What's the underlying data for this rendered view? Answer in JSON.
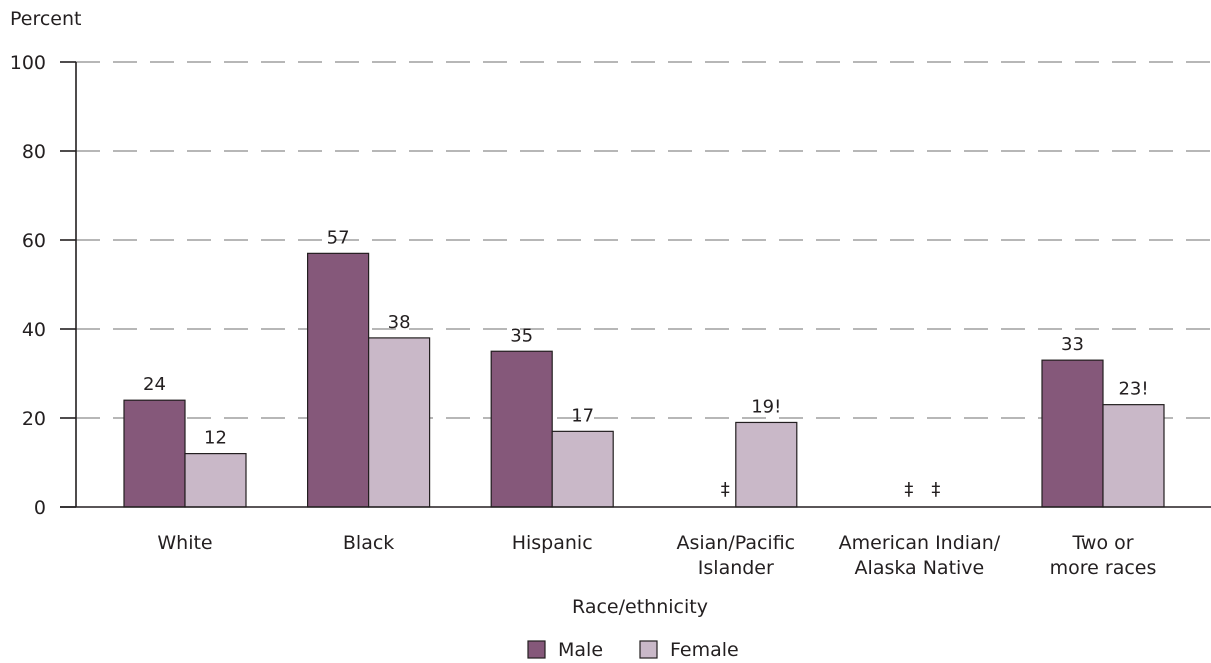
{
  "chart_data": {
    "type": "bar",
    "ylabel": "Percent",
    "xlabel": "Race/ethnicity",
    "ylim": [
      0,
      100
    ],
    "yticks": [
      0,
      20,
      40,
      60,
      80,
      100
    ],
    "grid": true,
    "legend_position": "bottom-center",
    "categories": [
      [
        "White"
      ],
      [
        "Black"
      ],
      [
        "Hispanic"
      ],
      [
        "Asian/Pacific",
        "Islander"
      ],
      [
        "American Indian/",
        "Alaska Native"
      ],
      [
        "Two or",
        "more races"
      ]
    ],
    "series": [
      {
        "name": "Male",
        "color": "#85587a",
        "values": [
          24,
          57,
          35,
          null,
          null,
          33
        ],
        "labels": [
          "24",
          "57",
          "35",
          "‡",
          "‡",
          "33"
        ]
      },
      {
        "name": "Female",
        "color": "#c9b8c8",
        "values": [
          12,
          38,
          17,
          19,
          null,
          23
        ],
        "labels": [
          "12",
          "38",
          "17",
          "19!",
          "‡",
          "23!"
        ]
      }
    ]
  }
}
